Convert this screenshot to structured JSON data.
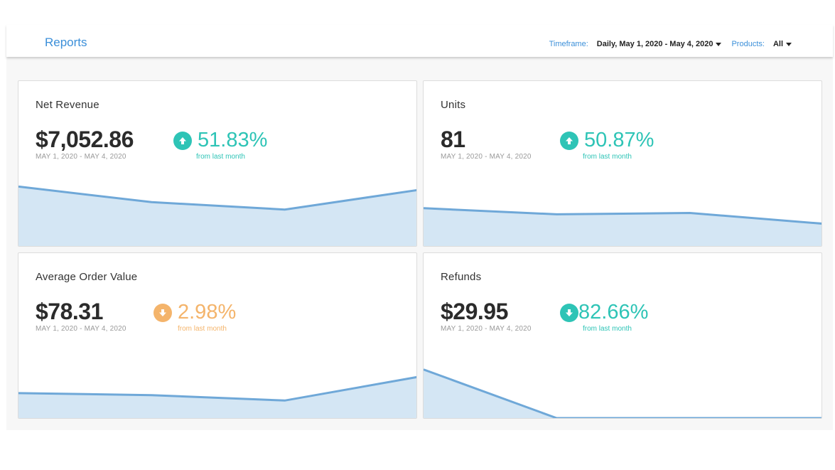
{
  "header": {
    "title": "Reports",
    "timeframe_label": "Timeframe:",
    "timeframe_value": "Daily, May 1, 2020 - May 4, 2020",
    "products_label": "Products:",
    "products_value": "All"
  },
  "colors": {
    "accent": "#3b8fd9",
    "positive": "#2ec4b6",
    "negative": "#f4b46b",
    "chart_line": "#6fa8d8",
    "chart_fill": "#d4e6f4"
  },
  "cards": [
    {
      "title": "Net Revenue",
      "value": "$7,052.86",
      "range": "MAY 1, 2020 - MAY 4, 2020",
      "change": "51.83%",
      "direction": "up",
      "change_sub": "from last month",
      "icon": "arrow-up-circle-icon"
    },
    {
      "title": "Units",
      "value": "81",
      "range": "MAY 1, 2020 - MAY 4, 2020",
      "change": "50.87%",
      "direction": "up",
      "change_sub": "from last month",
      "icon": "arrow-up-circle-icon"
    },
    {
      "title": "Average Order Value",
      "value": "$78.31",
      "range": "MAY 1, 2020 - MAY 4, 2020",
      "change": "2.98%",
      "direction": "down",
      "change_sub": "from last month",
      "icon": "arrow-down-circle-icon"
    },
    {
      "title": "Refunds",
      "value": "$29.95",
      "range": "MAY 1, 2020 - MAY 4, 2020",
      "change": "82.66%",
      "direction": "up",
      "change_sub": "from last month",
      "icon": "arrow-down-circle-icon"
    }
  ],
  "chart_data": [
    {
      "type": "area",
      "series_name": "",
      "values": [
        0.88,
        0.65,
        0.54,
        0.83
      ]
    },
    {
      "type": "area",
      "series_name": "",
      "values": [
        0.56,
        0.47,
        0.49,
        0.33
      ]
    },
    {
      "type": "area",
      "series_name": "",
      "values": [
        0.37,
        0.34,
        0.26,
        0.61
      ]
    },
    {
      "type": "area",
      "series_name": "",
      "values": [
        0.72,
        0.0,
        0.0,
        0.0
      ]
    }
  ]
}
